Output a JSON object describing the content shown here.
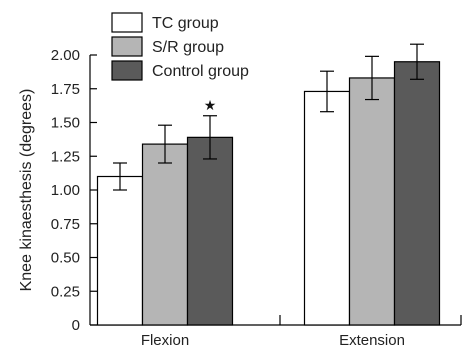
{
  "chart_data": {
    "type": "bar",
    "title": "",
    "xlabel": "",
    "ylabel": "Knee kinaesthesis (degrees)",
    "ylim": [
      0,
      2.0
    ],
    "yticks": [
      "0",
      "0.25",
      "0.50",
      "0.75",
      "1.00",
      "1.25",
      "1.50",
      "1.75",
      "2.00"
    ],
    "categories": [
      "Flexion",
      "Extension"
    ],
    "legend_position": "top-left",
    "grid": false,
    "series": [
      {
        "name": "TC group",
        "color": "#ffffff",
        "values": [
          1.1,
          1.73
        ],
        "errors": [
          0.1,
          0.15
        ]
      },
      {
        "name": "S/R group",
        "color": "#b5b5b5",
        "values": [
          1.34,
          1.83
        ],
        "errors": [
          0.14,
          0.16
        ]
      },
      {
        "name": "Control group",
        "color": "#5a5a5a",
        "values": [
          1.39,
          1.95
        ],
        "errors": [
          0.16,
          0.13
        ]
      }
    ],
    "annotations": [
      {
        "text": "★",
        "category": 0,
        "series": 2
      }
    ]
  }
}
